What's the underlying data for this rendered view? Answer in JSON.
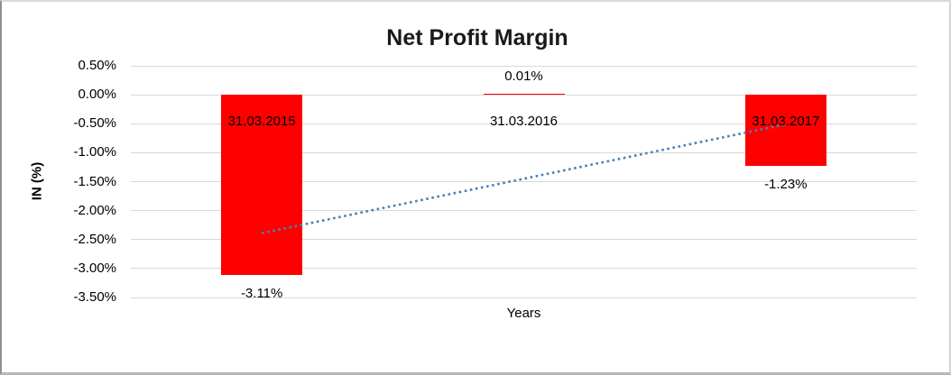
{
  "chart_data": {
    "type": "bar",
    "title": "Net Profit Margin",
    "xlabel": "Years",
    "ylabel": "IN (%)",
    "categories": [
      "31.03.2015",
      "31.03.2016",
      "31.03.2017"
    ],
    "series": [
      {
        "name": "Net Profit Margin",
        "values": [
          -3.11,
          0.01,
          -1.23
        ]
      }
    ],
    "data_labels": [
      "-3.11%",
      "0.01%",
      "-1.23%"
    ],
    "y_ticks": [
      {
        "label": "0.50%",
        "value": 0.5
      },
      {
        "label": "0.00%",
        "value": 0.0
      },
      {
        "label": "-0.50%",
        "value": -0.5
      },
      {
        "label": "-1.00%",
        "value": -1.0
      },
      {
        "label": "-1.50%",
        "value": -1.5
      },
      {
        "label": "-2.00%",
        "value": -2.0
      },
      {
        "label": "-2.50%",
        "value": -2.5
      },
      {
        "label": "-3.00%",
        "value": -3.0
      },
      {
        "label": "-3.50%",
        "value": -3.5
      }
    ],
    "ylim": [
      -3.5,
      0.5
    ],
    "grid": true,
    "legend": "none",
    "bar_color": "#ff0000",
    "gridline_color": "#d9d9d9",
    "trendline": {
      "type": "linear",
      "style": "dotted",
      "color": "#4a7ebb",
      "start_value": -2.39,
      "end_value": -0.51
    }
  }
}
